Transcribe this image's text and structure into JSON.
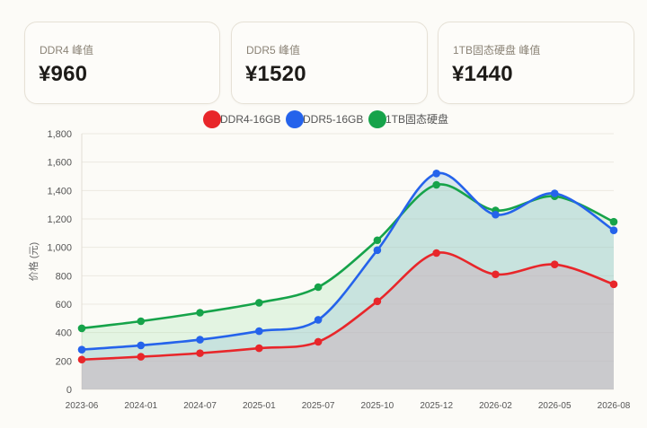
{
  "cards": [
    {
      "label": "DDR4 峰值",
      "value": "¥960"
    },
    {
      "label": "DDR5 峰值",
      "value": "¥1520"
    },
    {
      "label": "1TB固态硬盘 峰值",
      "value": "¥1440"
    }
  ],
  "chart_data": {
    "type": "area",
    "x": [
      "2023-06",
      "2024-01",
      "2024-07",
      "2025-01",
      "2025-07",
      "2025-10",
      "2025-12",
      "2026-02",
      "2026-05",
      "2026-08"
    ],
    "ylabel": "价格 (元)",
    "ylim": [
      0,
      1800
    ],
    "yticks": [
      0,
      200,
      400,
      600,
      800,
      1000,
      1200,
      1400,
      1600,
      1800
    ],
    "ytick_labels": [
      "0",
      "200",
      "400",
      "600",
      "800",
      "1,000",
      "1,200",
      "1,400",
      "1,600",
      "1,800"
    ],
    "grid": true,
    "legend_position": "top",
    "series": [
      {
        "name": "DDR4-16GB",
        "color": "#e8262a",
        "fill": "rgba(205,170,185,0.45)",
        "values": [
          210,
          230,
          255,
          290,
          335,
          620,
          960,
          810,
          880,
          740
        ]
      },
      {
        "name": "DDR5-16GB",
        "color": "#2563eb",
        "fill": "rgba(150,195,215,0.35)",
        "values": [
          280,
          310,
          350,
          410,
          490,
          980,
          1520,
          1230,
          1380,
          1120
        ]
      },
      {
        "name": "1TB固态硬盘",
        "color": "#16a34a",
        "fill": "rgba(150,225,165,0.25)",
        "values": [
          430,
          480,
          540,
          610,
          720,
          1050,
          1440,
          1260,
          1360,
          1180
        ]
      }
    ]
  }
}
